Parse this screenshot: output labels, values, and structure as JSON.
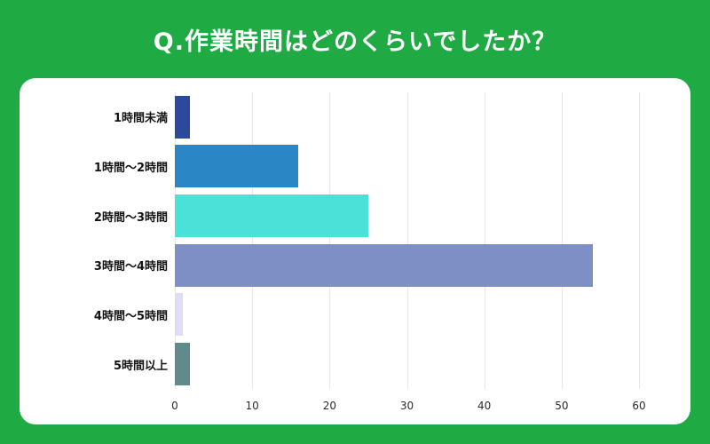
{
  "title": "Q.作業時間はどのくらいでしたか？",
  "colors": {
    "background_green": "#1faa44",
    "card_white": "#ffffff",
    "gridline": "#e7e7e7",
    "label_text": "#141414",
    "tick_text": "#2b2b2b"
  },
  "chart_data": {
    "type": "bar",
    "orientation": "horizontal",
    "title": "Q.作業時間はどのくらいでしたか？",
    "categories": [
      "1時間未満",
      "1時間〜2時間",
      "2時間〜3時間",
      "3時間〜4時間",
      "4時間〜5時間",
      "5時間以上"
    ],
    "values": [
      2,
      16,
      25,
      54,
      1,
      2
    ],
    "bar_colors": [
      "#2c4a9c",
      "#2a86c4",
      "#4be1d9",
      "#7e8fc6",
      "#dedcf6",
      "#5f8b8d"
    ],
    "xlabel": "",
    "ylabel": "",
    "xlim": [
      0,
      60
    ],
    "xticks": [
      0,
      10,
      20,
      30,
      40,
      50,
      60
    ],
    "grid": true,
    "legend": false
  }
}
